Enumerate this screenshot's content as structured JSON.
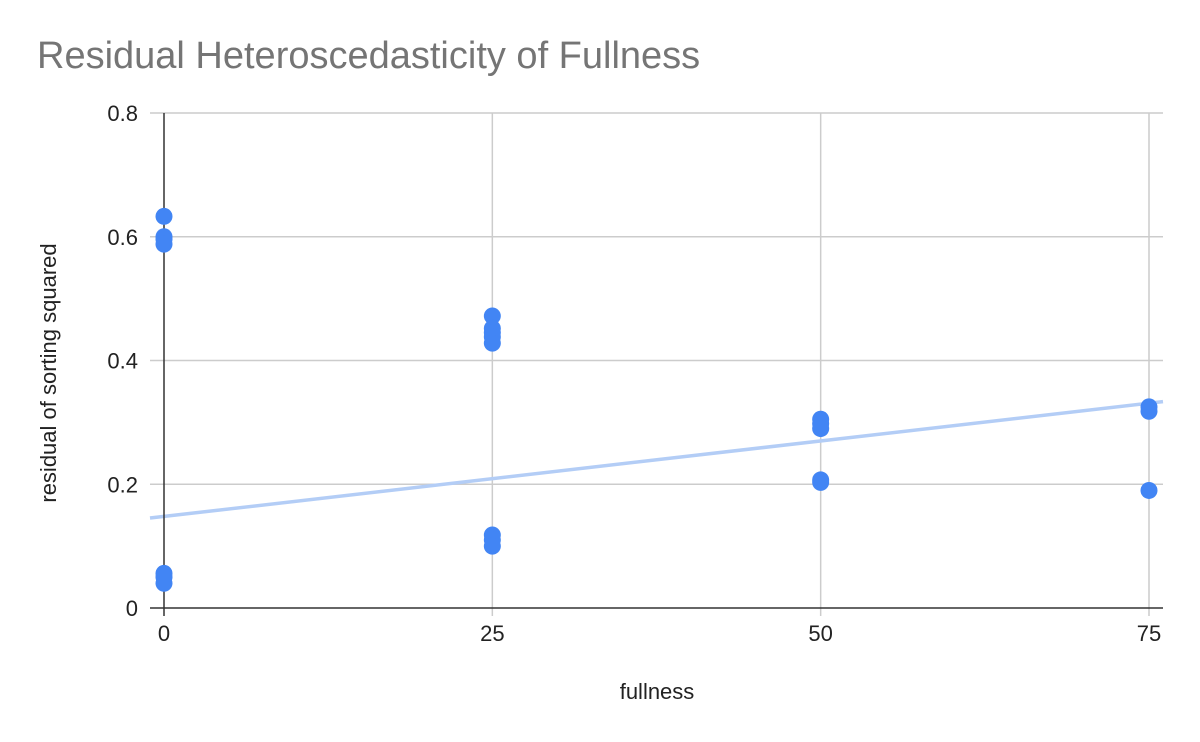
{
  "chart_data": {
    "type": "scatter",
    "title": "Residual Heteroscedasticity of Fullness",
    "xlabel": "fullness",
    "ylabel": "residual  of sorting squared",
    "xlim": [
      0,
      75
    ],
    "ylim": [
      0,
      0.8
    ],
    "x_ticks": [
      0,
      25,
      50,
      75
    ],
    "x_tick_labels": [
      "0",
      "25",
      "50",
      "75"
    ],
    "y_ticks": [
      0,
      0.2,
      0.4,
      0.6,
      0.8
    ],
    "y_tick_labels": [
      "0",
      "0.2",
      "0.4",
      "0.6",
      "0.8"
    ],
    "grid": true,
    "legend": "none",
    "series": [
      {
        "points": [
          {
            "x": 0,
            "y": 0.633
          },
          {
            "x": 0,
            "y": 0.6
          },
          {
            "x": 0,
            "y": 0.596
          },
          {
            "x": 0,
            "y": 0.588
          },
          {
            "x": 0,
            "y": 0.056
          },
          {
            "x": 0,
            "y": 0.05
          },
          {
            "x": 0,
            "y": 0.04
          },
          {
            "x": 25,
            "y": 0.472
          },
          {
            "x": 25,
            "y": 0.452
          },
          {
            "x": 25,
            "y": 0.445
          },
          {
            "x": 25,
            "y": 0.438
          },
          {
            "x": 25,
            "y": 0.428
          },
          {
            "x": 25,
            "y": 0.118
          },
          {
            "x": 25,
            "y": 0.11
          },
          {
            "x": 25,
            "y": 0.1
          },
          {
            "x": 50,
            "y": 0.305
          },
          {
            "x": 50,
            "y": 0.298
          },
          {
            "x": 50,
            "y": 0.29
          },
          {
            "x": 50,
            "y": 0.207
          },
          {
            "x": 50,
            "y": 0.203
          },
          {
            "x": 75,
            "y": 0.325
          },
          {
            "x": 75,
            "y": 0.318
          },
          {
            "x": 75,
            "y": 0.19
          }
        ]
      }
    ],
    "trendline": {
      "x": [
        0,
        75
      ],
      "y": [
        0.148,
        0.331
      ]
    },
    "colors": {
      "point": "#4285f4",
      "trendline": "#b3cdf6",
      "title": "#757575",
      "grid": "#cccccc",
      "axis": "#333333"
    }
  }
}
